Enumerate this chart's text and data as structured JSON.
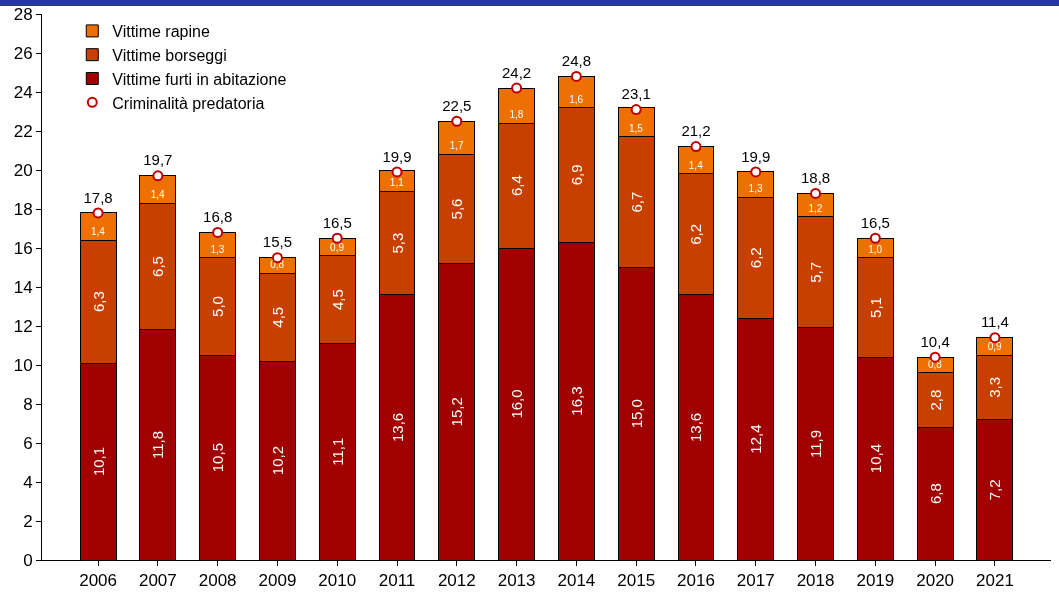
{
  "chart_data": {
    "type": "bar",
    "stacked": true,
    "categories": [
      "2006",
      "2007",
      "2008",
      "2009",
      "2010",
      "2011",
      "2012",
      "2013",
      "2014",
      "2015",
      "2016",
      "2017",
      "2018",
      "2019",
      "2020",
      "2021"
    ],
    "series": [
      {
        "name": "Vittime furti in abitazione",
        "color": "#a00000",
        "values": [
          10.1,
          11.8,
          10.5,
          10.2,
          11.1,
          13.6,
          15.2,
          16.0,
          16.3,
          15.0,
          13.6,
          12.4,
          11.9,
          10.4,
          6.8,
          7.2
        ],
        "value_labels": [
          "10,1",
          "11,8",
          "10,5",
          "10,2",
          "11,1",
          "13,6",
          "15,2",
          "16,0",
          "16,3",
          "15,0",
          "13,6",
          "12,4",
          "11,9",
          "10,4",
          "6,8",
          "7,2"
        ]
      },
      {
        "name": "Vittime borseggi",
        "color": "#c84000",
        "values": [
          6.3,
          6.5,
          5.0,
          4.5,
          4.5,
          5.3,
          5.6,
          6.4,
          6.9,
          6.7,
          6.2,
          6.2,
          5.7,
          5.1,
          2.8,
          3.3
        ],
        "value_labels": [
          "6,3",
          "6,5",
          "5,0",
          "4,5",
          "4,5",
          "5,3",
          "5,6",
          "6,4",
          "6,9",
          "6,7",
          "6,2",
          "6,2",
          "5,7",
          "5,1",
          "2,8",
          "3,3"
        ]
      },
      {
        "name": "Vittime rapine",
        "color": "#ee7000",
        "values": [
          1.4,
          1.4,
          1.3,
          0.8,
          0.9,
          1.1,
          1.7,
          1.8,
          1.6,
          1.5,
          1.4,
          1.3,
          1.2,
          1.0,
          0.8,
          0.9
        ],
        "value_labels": [
          "1,4",
          "1,4",
          "1,3",
          "0,8",
          "0,9",
          "1,1",
          "1,7",
          "1,8",
          "1,6",
          "1,5",
          "1,4",
          "1,3",
          "1,2",
          "1,0",
          "0,8",
          "0,9"
        ]
      },
      {
        "name": "Criminalità predatoria",
        "type": "scatter",
        "marker": "circle",
        "color": "#c00000",
        "values": [
          17.8,
          19.7,
          16.8,
          15.5,
          16.5,
          19.9,
          22.5,
          24.2,
          24.8,
          23.1,
          21.2,
          19.9,
          18.8,
          16.5,
          10.4,
          11.4
        ],
        "value_labels": [
          "17,8",
          "19,7",
          "16,8",
          "15,5",
          "16,5",
          "19,9",
          "22,5",
          "24,2",
          "24,8",
          "23,1",
          "21,2",
          "19,9",
          "18,8",
          "16,5",
          "10,4",
          "11,4"
        ]
      }
    ],
    "ylim": [
      0,
      28
    ],
    "yticks": [
      0,
      2,
      4,
      6,
      8,
      10,
      12,
      14,
      16,
      18,
      20,
      22,
      24,
      26,
      28
    ],
    "grid": false,
    "legend": "top left"
  }
}
